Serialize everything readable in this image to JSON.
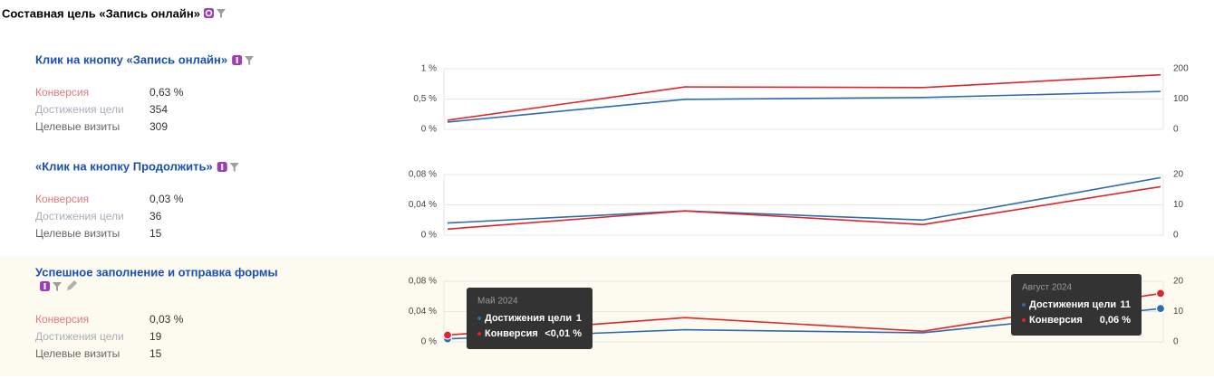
{
  "header": {
    "title": "Составная цель «Запись онлайн»"
  },
  "goals": [
    {
      "title": "Клик на кнопку «Запись онлайн»",
      "stats": [
        {
          "label": "Конверсия",
          "value": "0,63 %"
        },
        {
          "label": "Достижения цели",
          "value": "354"
        },
        {
          "label": "Целевые визиты",
          "value": "309"
        }
      ],
      "chart": {
        "type": "line",
        "categories": [
          null,
          null,
          null,
          null
        ],
        "ylim": [
          0,
          1
        ],
        "yticks": [
          {
            "value": 0,
            "label": "0 %"
          },
          {
            "value": 0.5,
            "label": "0,5 %"
          },
          {
            "value": 1,
            "label": "1 %"
          }
        ],
        "y2lim": [
          0,
          200
        ],
        "y2ticks": [
          0,
          100,
          200
        ],
        "grid": true,
        "series": [
          {
            "name": "Достижения цели",
            "color": "#2b6cb0",
            "axis": "y2",
            "values": [
              24,
              99,
              105,
              125
            ]
          },
          {
            "name": "Конверсия",
            "color": "#e0242a",
            "values": [
              0.15,
              0.7,
              0.69,
              0.9
            ]
          }
        ]
      }
    },
    {
      "title": "«Клик на кнопку Продолжить»",
      "stats": [
        {
          "label": "Конверсия",
          "value": "0,03 %"
        },
        {
          "label": "Достижения цели",
          "value": "36"
        },
        {
          "label": "Целевые визиты",
          "value": "15"
        }
      ],
      "chart": {
        "type": "line",
        "categories": [
          null,
          null,
          null,
          null
        ],
        "ylim": [
          0,
          0.08
        ],
        "yticks": [
          {
            "value": 0,
            "label": "0 %"
          },
          {
            "value": 0.04,
            "label": "0,04 %"
          },
          {
            "value": 0.08,
            "label": "0,08 %"
          }
        ],
        "y2lim": [
          0,
          20
        ],
        "y2ticks": [
          0,
          10,
          20
        ],
        "grid": true,
        "series": [
          {
            "name": "Достижения цели",
            "color": "#2b6cb0",
            "axis": "y2",
            "values": [
              4,
              8,
              5,
              19
            ]
          },
          {
            "name": "Конверсия",
            "color": "#e0242a",
            "values": [
              0.008,
              0.032,
              0.014,
              0.064
            ]
          }
        ]
      }
    },
    {
      "title": "Успешное заполнение и отправка формы",
      "stats": [
        {
          "label": "Конверсия",
          "value": "0,03 %"
        },
        {
          "label": "Достижения цели",
          "value": "19"
        },
        {
          "label": "Целевые визиты",
          "value": "15"
        }
      ],
      "chart": {
        "type": "line",
        "categories": [
          null,
          null,
          null,
          null
        ],
        "ylim": [
          0,
          0.08
        ],
        "yticks": [
          {
            "value": 0,
            "label": "0 %"
          },
          {
            "value": 0.04,
            "label": "0,04 %"
          },
          {
            "value": 0.08,
            "label": "0,08 %"
          }
        ],
        "y2lim": [
          0,
          20
        ],
        "y2ticks": [
          0,
          10,
          20
        ],
        "grid": true,
        "series": [
          {
            "name": "Достижения цели",
            "color": "#2b6cb0",
            "axis": "y2",
            "values": [
              1,
              4,
              3,
              11
            ]
          },
          {
            "name": "Конверсия",
            "color": "#e0242a",
            "values": [
              0.009,
              0.032,
              0.014,
              0.064
            ]
          }
        ],
        "tooltips": [
          {
            "title": "Май 2024",
            "rows": [
              {
                "name": "Достижения цели",
                "value": "1"
              },
              {
                "name": "Конверсия",
                "value": "<0,01 %"
              }
            ]
          },
          {
            "title": "Август 2024",
            "rows": [
              {
                "name": "Достижения цели",
                "value": "11"
              },
              {
                "name": "Конверсия",
                "value": "0,06 %"
              }
            ]
          }
        ]
      }
    }
  ]
}
